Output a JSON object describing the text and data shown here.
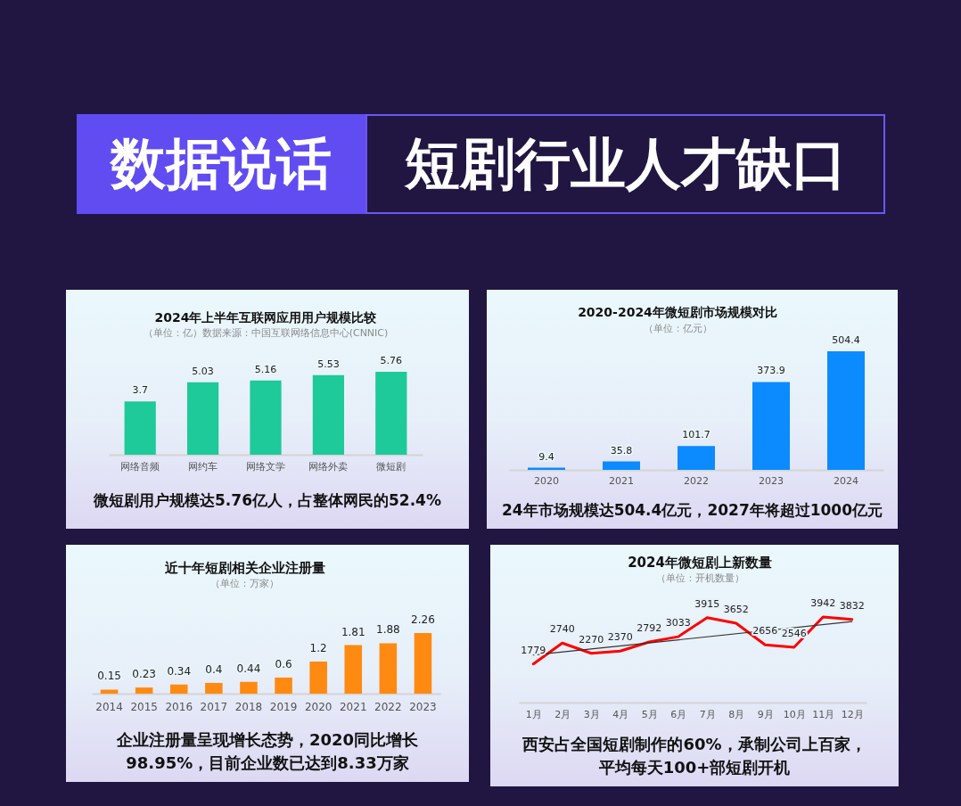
{
  "chart_data": [
    {
      "type": "other",
      "title": "数据说话",
      "subtitle": "短剧行业人才缺口"
    },
    {
      "type": "bar",
      "title": "2024年上半年互联网应用用户规模比较",
      "subtitle": "（单位：亿）数据来源：中国互联网络信息中心(CNNIC)",
      "categories": [
        "网络音频",
        "网约车",
        "网络文学",
        "网络外卖",
        "微短剧"
      ],
      "values": [
        3.7,
        5.03,
        5.16,
        5.53,
        5.76
      ],
      "color": "#1ec99a",
      "data_labels": true,
      "tick_labels": "x",
      "annotations": [
        "微短剧用户规模达5.76亿人，占整体网民的52.4%"
      ]
    },
    {
      "type": "bar",
      "title": "2020-2024年微短剧市场规模对比",
      "subtitle": "（单位：亿元）",
      "categories": [
        "2020",
        "2021",
        "2022",
        "2023",
        "2024"
      ],
      "values": [
        9.4,
        35.8,
        101.7,
        373.9,
        504.4
      ],
      "color": "#0b8bff",
      "data_labels": true,
      "tick_labels": "x",
      "annotations": [
        "24年市场规模达504.4亿元，2027年将超过1000亿元"
      ]
    },
    {
      "type": "bar",
      "title": "近十年短剧相关企业注册量",
      "subtitle": "（单位：万家）",
      "categories": [
        "2014",
        "2015",
        "2016",
        "2017",
        "2018",
        "2019",
        "2020",
        "2021",
        "2022",
        "2023"
      ],
      "values": [
        0.15,
        0.23,
        0.34,
        0.4,
        0.44,
        0.6,
        1.2,
        1.81,
        1.88,
        2.26
      ],
      "color": "#ff8a12",
      "data_labels": true,
      "tick_labels": "x",
      "annotations": [
        "企业注册量呈现增长态势，2020同比增长98.95%，目前企业数已达到8.33万家"
      ]
    },
    {
      "type": "line",
      "title": "2024年微短剧上新数量",
      "subtitle": "（单位：开机数量）",
      "categories": [
        "1月",
        "2月",
        "3月",
        "4月",
        "5月",
        "6月",
        "7月",
        "8月",
        "9月",
        "10月",
        "11月",
        "12月"
      ],
      "series": [
        {
          "color": "#ff0000",
          "values": [
            1779,
            2740,
            2270,
            2370,
            2792,
            3033,
            3915,
            3652,
            2656,
            2546,
            3942,
            3832
          ],
          "value_labels": [
            "1779",
            "2740",
            "2270",
            "2370",
            "2792",
            "3033",
            "3915",
            "3652",
            "2656",
            "2546",
            "3942",
            "3832"
          ]
        },
        {
          "type": "line",
          "x": [
            "1月",
            "12月"
          ],
          "color": "#333333",
          "values": [
            2190,
            3730
          ]
        }
      ],
      "tick_labels": "x",
      "annotations": [
        "西安占全国短剧制作的60%，承制公司上百家，平均每天100+部短剧开机"
      ]
    }
  ]
}
